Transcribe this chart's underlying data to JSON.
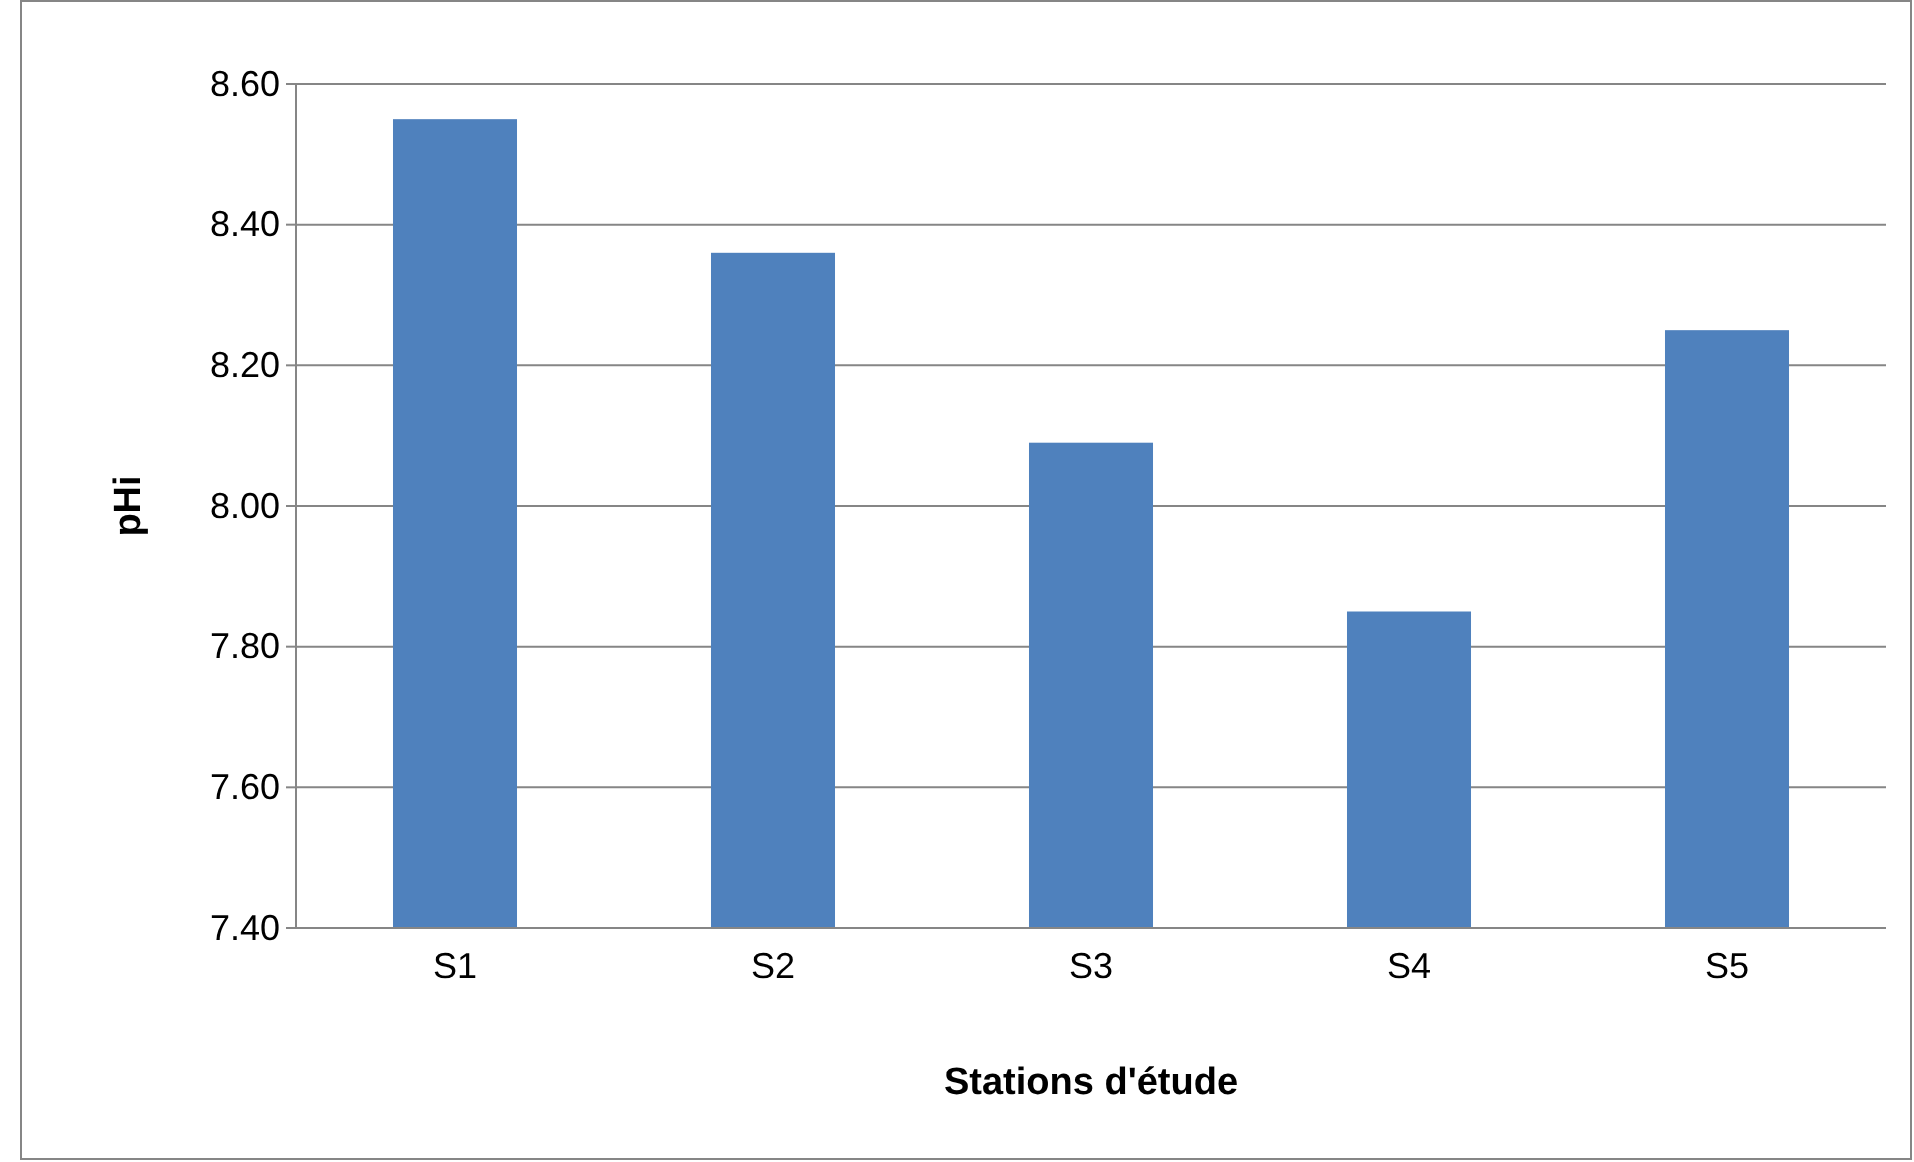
{
  "chart_data": {
    "type": "bar",
    "xlabel": "Stations d'étude",
    "ylabel": "pHi",
    "categories": [
      "S1",
      "S2",
      "S3",
      "S4",
      "S5"
    ],
    "values": [
      8.55,
      8.36,
      8.09,
      7.85,
      8.25
    ],
    "color": "#4f81bd",
    "ylim": [
      7.4,
      8.6
    ],
    "yticks": [
      {
        "value": 7.4,
        "label": "7.40"
      },
      {
        "value": 7.6,
        "label": "7.60"
      },
      {
        "value": 7.8,
        "label": "7.80"
      },
      {
        "value": 8.0,
        "label": "8.00"
      },
      {
        "value": 8.2,
        "label": "8.20"
      },
      {
        "value": 8.4,
        "label": "8.40"
      },
      {
        "value": 8.6,
        "label": "8.60"
      }
    ],
    "grid": "y"
  }
}
